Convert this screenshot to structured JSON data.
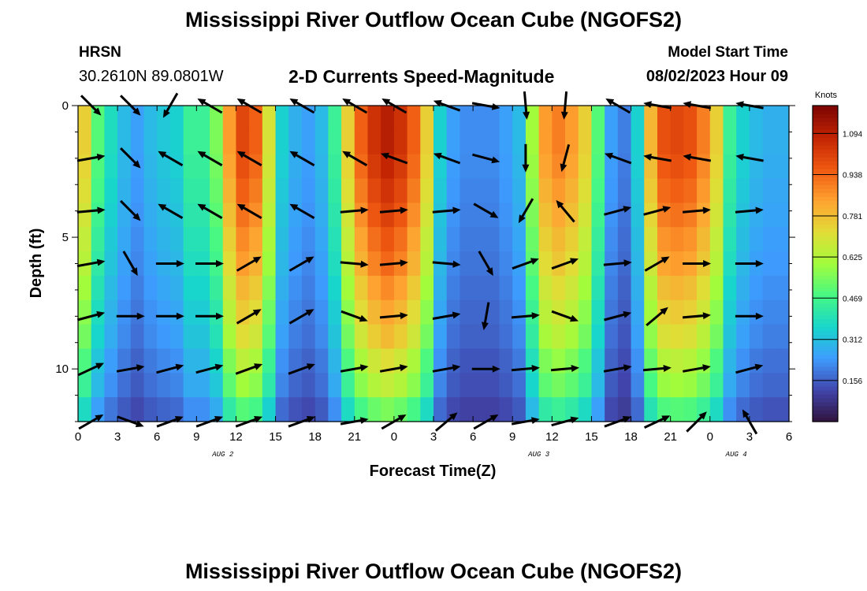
{
  "header": {
    "title": "Mississippi River Outflow Ocean Cube (NGOFS2)",
    "station_id": "HRSN",
    "station_coords": "30.2610N  89.0801W",
    "subtitle": "2-D Currents Speed-Magnitude",
    "model_start_label": "Model Start Time",
    "model_start_value": "08/02/2023 Hour 09"
  },
  "footer": {
    "title_repeat": "Mississippi River Outflow Ocean Cube (NGOFS2)"
  },
  "chart_data": {
    "type": "heatmap",
    "xlabel": "Forecast Time(Z)",
    "ylabel": "Depth (ft)",
    "x_tick_labels": [
      "0",
      "3",
      "6",
      "9",
      "12",
      "15",
      "18",
      "21",
      "0",
      "3",
      "6",
      "9",
      "12",
      "15",
      "18",
      "21",
      "0",
      "3",
      "6"
    ],
    "x_range_hours": [
      0,
      54
    ],
    "y_tick_labels": [
      "0",
      "5",
      "10"
    ],
    "y_range": [
      0,
      12
    ],
    "y_inverted": true,
    "date_labels": [
      {
        "text": "AUG 2",
        "hour": 11
      },
      {
        "text": "AUG 3",
        "hour": 35
      },
      {
        "text": "AUG 4",
        "hour": 50
      }
    ],
    "colorbar": {
      "unit": "Knots",
      "range": [
        0,
        1.2
      ],
      "ticks": [
        "1.094",
        "0.938",
        "0.781",
        "0.625",
        "0.469",
        "0.312",
        "0.156"
      ],
      "tick_values": [
        1.094,
        0.938,
        0.781,
        0.625,
        0.469,
        0.312,
        0.156
      ],
      "colors": [
        "#30123b",
        "#4145ab",
        "#3e9bfe",
        "#18d6cb",
        "#46f884",
        "#a2fc3c",
        "#e1dd37",
        "#fea331",
        "#ef5911",
        "#c22403",
        "#7a0403"
      ]
    },
    "speed_by_hour_knots": [
      0.75,
      0.5,
      0.38,
      0.3,
      0.25,
      0.3,
      0.33,
      0.35,
      0.45,
      0.45,
      0.55,
      0.85,
      1.0,
      0.95,
      0.7,
      0.35,
      0.28,
      0.25,
      0.3,
      0.45,
      0.75,
      0.95,
      1.05,
      1.1,
      1.05,
      0.95,
      0.75,
      0.35,
      0.25,
      0.22,
      0.22,
      0.22,
      0.25,
      0.3,
      0.6,
      0.85,
      0.9,
      0.85,
      0.75,
      0.5,
      0.25,
      0.2,
      0.35,
      0.8,
      0.98,
      1.0,
      0.98,
      0.9,
      0.75,
      0.45,
      0.35,
      0.3,
      0.28,
      0.28
    ],
    "depth_profile": [
      1.0,
      1.0,
      0.98,
      0.95,
      0.92,
      0.88,
      0.85,
      0.8,
      0.76,
      0.72,
      0.65,
      0.6,
      0.5
    ],
    "vectors": {
      "hours": [
        1,
        4,
        7,
        10,
        13,
        17,
        21,
        24,
        28,
        31,
        34,
        37,
        41,
        44,
        47,
        51
      ],
      "depths_ft": [
        0,
        2,
        4,
        6,
        8,
        10,
        12
      ],
      "angles_deg": [
        [
          45,
          45,
          120,
          210,
          -150,
          -150,
          -150,
          -150,
          -160,
          10,
          85,
          95,
          -150,
          -170,
          -170,
          -170
        ],
        [
          -10,
          45,
          -150,
          -150,
          -150,
          -150,
          -150,
          -160,
          -160,
          15,
          90,
          105,
          -160,
          -170,
          -170,
          -170
        ],
        [
          -5,
          45,
          -150,
          -150,
          -150,
          -150,
          -5,
          -5,
          -5,
          30,
          120,
          -130,
          -15,
          -15,
          -5,
          -5
        ],
        [
          -10,
          60,
          0,
          0,
          -30,
          -30,
          5,
          -5,
          5,
          60,
          -20,
          -20,
          -5,
          -30,
          0,
          0
        ],
        [
          -15,
          0,
          0,
          0,
          -30,
          -30,
          20,
          -5,
          -10,
          100,
          -5,
          20,
          -15,
          -40,
          -5,
          0
        ],
        [
          -25,
          -10,
          -15,
          -15,
          -20,
          -20,
          -10,
          -10,
          -10,
          0,
          -5,
          -5,
          -10,
          -5,
          -10,
          -15
        ],
        [
          -30,
          20,
          -20,
          -20,
          -20,
          -20,
          -10,
          -30,
          -40,
          -30,
          -10,
          -15,
          -20,
          -25,
          -45,
          -120
        ]
      ]
    }
  }
}
